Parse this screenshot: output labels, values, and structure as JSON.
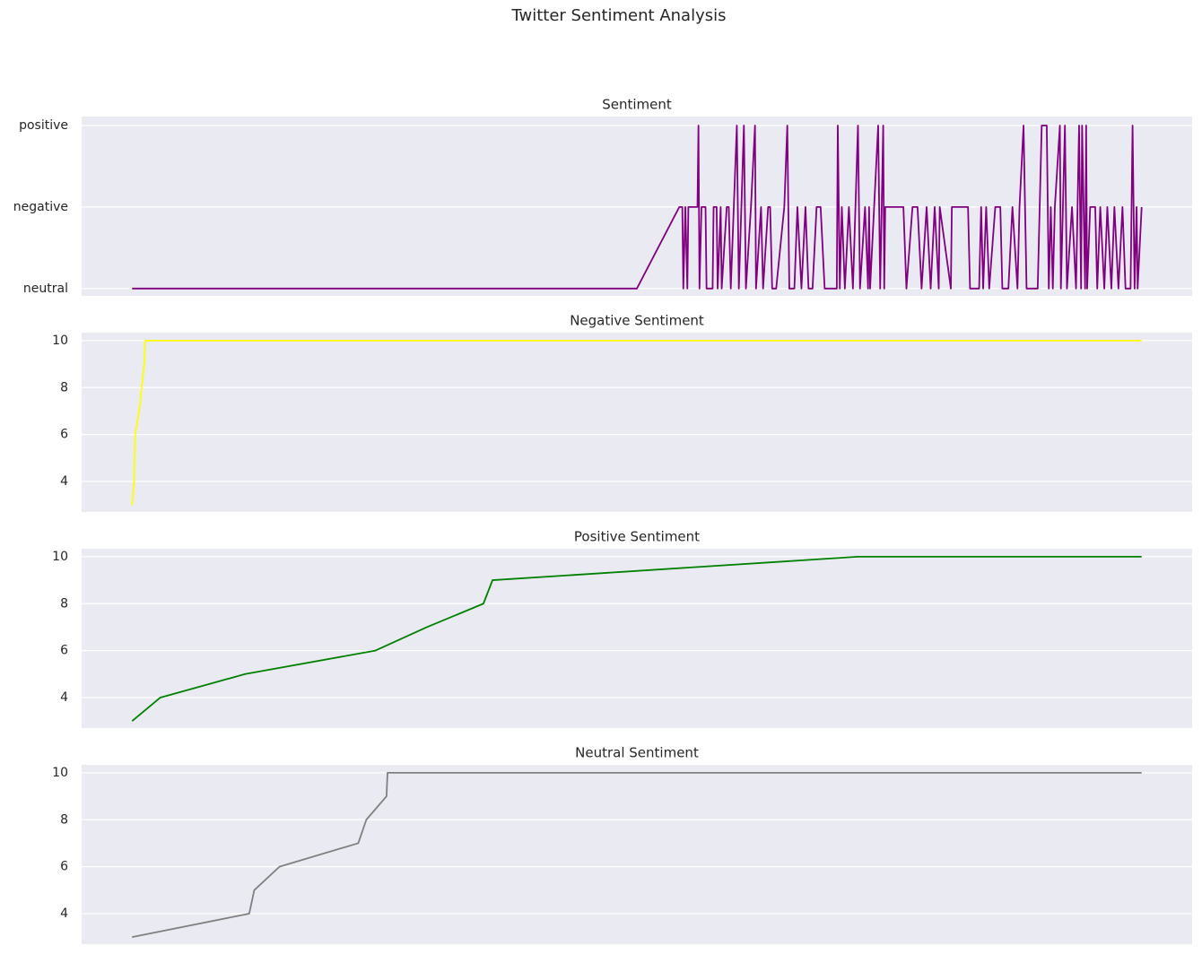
{
  "title": "Twitter Sentiment Analysis",
  "chart_data": [
    {
      "type": "line",
      "title": "Sentiment",
      "color": "#800080",
      "grid": true,
      "xlim": [
        -5,
        105
      ],
      "ylim": [
        -0.09,
        2.11
      ],
      "yticks": [
        {
          "value": 0,
          "label": "neutral"
        },
        {
          "value": 1,
          "label": "negative"
        },
        {
          "value": 2,
          "label": "positive"
        }
      ],
      "x": [
        0,
        50.0,
        54.2,
        54.5,
        54.6,
        54.8,
        55.0,
        55.1,
        56.0,
        56.1,
        56.2,
        56.4,
        56.8,
        56.9,
        57.5,
        57.6,
        57.9,
        58.0,
        58.3,
        58.4,
        58.9,
        59.1,
        59.3,
        59.9,
        60.1,
        60.6,
        60.8,
        61.3,
        61.7,
        61.8,
        62.3,
        62.5,
        63.0,
        63.2,
        63.4,
        63.8,
        64.6,
        64.9,
        65.1,
        65.6,
        65.9,
        66.3,
        66.7,
        67.0,
        67.4,
        67.8,
        68.2,
        68.6,
        69.8,
        69.9,
        70.1,
        70.3,
        70.6,
        71.0,
        71.4,
        71.9,
        72.1,
        72.6,
        72.9,
        73.0,
        73.1,
        73.9,
        74.1,
        74.4,
        74.5,
        74.6,
        76.4,
        76.7,
        77.3,
        77.8,
        78.2,
        78.7,
        79.1,
        79.5,
        79.9,
        80.0,
        81.1,
        81.2,
        82.8,
        83.0,
        83.9,
        84.1,
        84.3,
        84.6,
        84.9,
        85.5,
        86.0,
        86.2,
        86.8,
        87.2,
        87.7,
        87.9,
        88.3,
        88.6,
        89.7,
        90.1,
        90.6,
        90.8,
        91.0,
        91.2,
        91.4,
        91.9,
        92.0,
        92.4,
        92.6,
        93.1,
        93.5,
        93.8,
        94.0,
        94.1,
        94.4,
        94.5,
        94.6,
        94.9,
        95.4,
        95.6,
        95.9,
        96.3,
        96.6,
        97.0,
        97.3,
        97.7,
        98.1,
        98.4,
        98.9,
        99.1,
        99.3,
        99.5,
        99.6,
        100
      ],
      "values": [
        0,
        0,
        1,
        1,
        0,
        1,
        0,
        1,
        1,
        2,
        0,
        1,
        1,
        0,
        0,
        1,
        1,
        0,
        1,
        0,
        1,
        1,
        0,
        2,
        0,
        2,
        0,
        1,
        2,
        0,
        1,
        0,
        1,
        1,
        0,
        0,
        1,
        2,
        0,
        0,
        1,
        0,
        1,
        0,
        0,
        1,
        1,
        0,
        0,
        2,
        0,
        1,
        0,
        1,
        0,
        2,
        0,
        1,
        0,
        1,
        0,
        2,
        0,
        2,
        0,
        1,
        1,
        0,
        1,
        1,
        0,
        1,
        0,
        1,
        0,
        1,
        0,
        1,
        1,
        0,
        0,
        1,
        0,
        1,
        0,
        1,
        1,
        0,
        0,
        1,
        0,
        1,
        2,
        0,
        0,
        2,
        2,
        0,
        1,
        0,
        1,
        2,
        0,
        2,
        0,
        1,
        0,
        2,
        0,
        2,
        0,
        2,
        0,
        1,
        1,
        0,
        1,
        0,
        1,
        0,
        1,
        0,
        1,
        0,
        0,
        2,
        0,
        1,
        0,
        1
      ]
    },
    {
      "type": "line",
      "title": "Negative Sentiment",
      "color": "#ffff00",
      "grid": true,
      "xlim": [
        -5,
        105
      ],
      "ylim": [
        2.7,
        10.34
      ],
      "yticks": [
        4,
        6,
        8,
        10
      ],
      "x": [
        0,
        0.2,
        0.3,
        0.7,
        1.2,
        1.3,
        100
      ],
      "values": [
        3,
        4,
        6,
        7,
        9,
        10,
        10
      ]
    },
    {
      "type": "line",
      "title": "Positive Sentiment",
      "color": "#008000",
      "grid": true,
      "xlim": [
        -5,
        105
      ],
      "ylim": [
        2.7,
        10.34
      ],
      "yticks": [
        4,
        6,
        8,
        10
      ],
      "x": [
        0,
        2.8,
        11.2,
        24.1,
        29.2,
        34.8,
        35.7,
        71.9,
        100
      ],
      "values": [
        3,
        4,
        5,
        6,
        7,
        8,
        9,
        10,
        10
      ]
    },
    {
      "type": "line",
      "title": "Neutral Sentiment",
      "color": "#808080",
      "grid": true,
      "xlim": [
        -5,
        105
      ],
      "ylim": [
        2.7,
        10.34
      ],
      "yticks": [
        4,
        6,
        8,
        10
      ],
      "x": [
        0,
        11.6,
        12.1,
        14.6,
        22.4,
        23.2,
        25.2,
        25.3,
        100
      ],
      "values": [
        3,
        4,
        5,
        6,
        7,
        8,
        9,
        10,
        10
      ]
    }
  ]
}
